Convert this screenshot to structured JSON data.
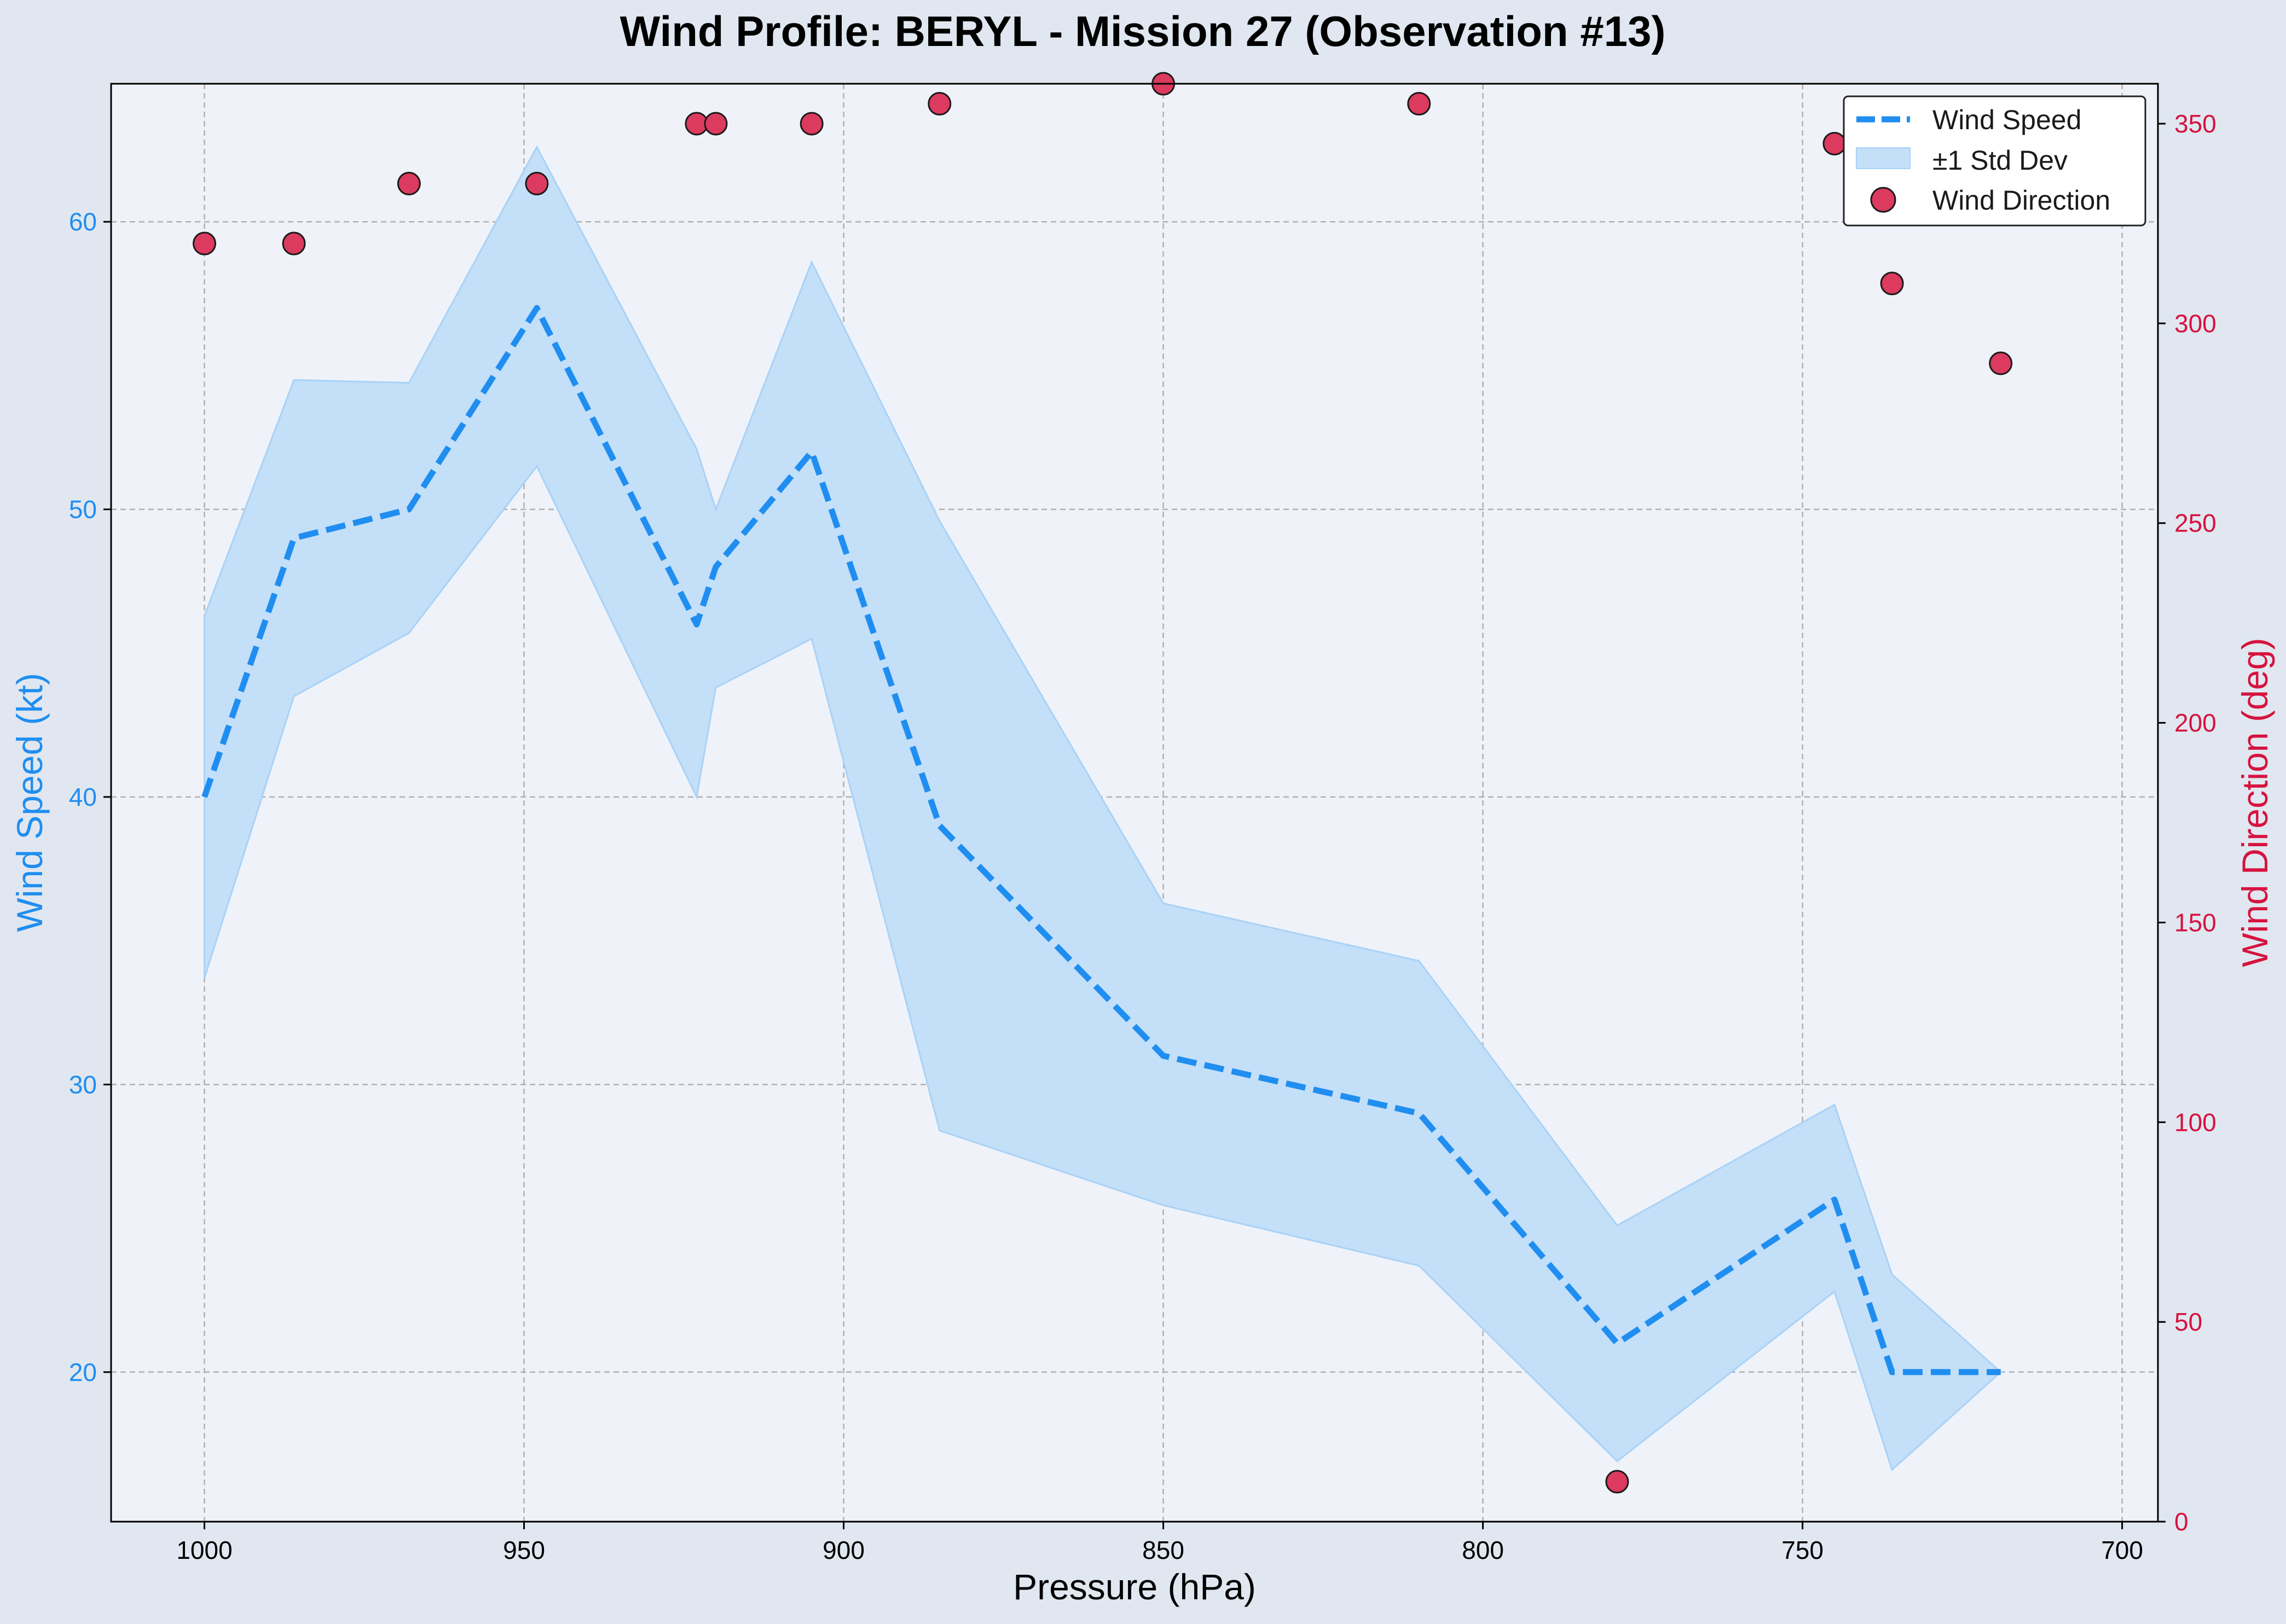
{
  "chart_data": {
    "type": "line",
    "title": "Wind Profile: BERYL - Mission 27 (Observation #13)",
    "xlabel": "Pressure (hPa)",
    "ylabel": "Wind Speed (kt)",
    "y2label": "Wind Direction (deg)",
    "x_inverted": true,
    "xlim": [
      1014.6,
      694.4
    ],
    "ylim": [
      14.8,
      64.8
    ],
    "y2lim": [
      0,
      360
    ],
    "xticks": [
      1000,
      950,
      900,
      850,
      800,
      750,
      700
    ],
    "yticks": [
      20,
      30,
      40,
      50,
      60
    ],
    "y2ticks": [
      0,
      50,
      100,
      150,
      200,
      250,
      300,
      350
    ],
    "grid": true,
    "legend_position": "top-right",
    "x": [
      1000,
      986,
      968,
      948,
      923,
      920,
      905,
      885,
      850,
      810,
      779,
      745,
      736,
      719
    ],
    "series": [
      {
        "name": "Wind Speed",
        "axis": "left",
        "style": "dashed-line",
        "color": "#1f8ef0",
        "values": [
          40,
          49,
          50,
          57,
          46,
          48,
          52,
          39,
          31,
          29,
          21,
          26,
          20,
          20
        ]
      },
      {
        "name": "±1 Std Dev",
        "axis": "left",
        "style": "band",
        "color": "#a9d2f7",
        "lower": [
          33.7,
          43.5,
          45.7,
          51.5,
          40.0,
          43.8,
          45.5,
          28.4,
          25.8,
          23.7,
          16.9,
          22.8,
          16.6,
          20.0
        ],
        "upper": [
          46.3,
          54.5,
          54.4,
          62.6,
          52.1,
          50.0,
          58.6,
          49.6,
          36.3,
          34.3,
          25.1,
          29.3,
          23.4,
          20.0
        ]
      },
      {
        "name": "Wind Direction",
        "axis": "right",
        "style": "scatter",
        "color": "#dc3a5e",
        "values": [
          320,
          320,
          335,
          335,
          350,
          350,
          350,
          355,
          360,
          355,
          10,
          345,
          310,
          290
        ]
      }
    ],
    "colors": {
      "plot_bg": "#eff3f9",
      "speed_axis": "#1f8ef0",
      "direction_axis": "#d6133f",
      "grid": "#b0b0b0"
    }
  }
}
